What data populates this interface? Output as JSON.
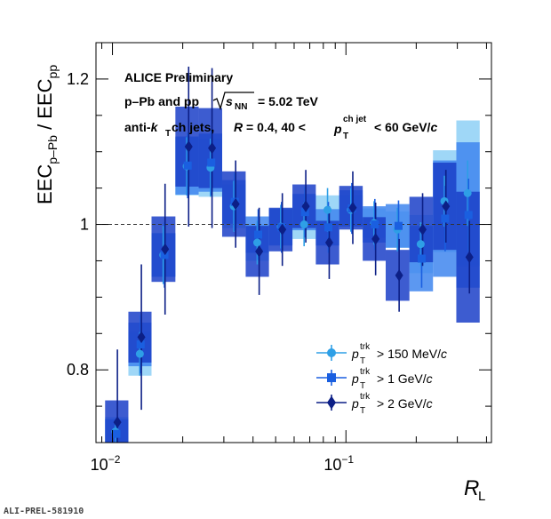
{
  "chart_data": {
    "type": "scatter",
    "annotations": {
      "line1": "ALICE Preliminary",
      "line2_a": "p–Pb and pp",
      "line2_b": "= 5.02 TeV",
      "line3_a": "anti-",
      "line3_b": " ch jets,",
      "line3_c": " = 0.4, 40 < ",
      "line3_d": " < 60 GeV/",
      "sqrt_s": "s",
      "sqrt_sub": "NN",
      "k": "k",
      "k_sub": "T",
      "R": "R",
      "pt": "p",
      "pt_sub": "T",
      "pt_sup": "ch jet",
      "c": "c"
    },
    "xlabel": "R",
    "xlabel_sub": "L",
    "ylabel": "EEC",
    "ylabel_sub1": "p–Pb",
    "ylabel_sep": " / EEC",
    "ylabel_sub2": "pp",
    "xscale": "log",
    "xlim": [
      0.0085,
      0.42
    ],
    "ylim": [
      0.7,
      1.25
    ],
    "x_ticks": [
      {
        "value": 0.01,
        "base": "10",
        "exp": "−2"
      },
      {
        "value": 0.1,
        "base": "10",
        "exp": "−1"
      }
    ],
    "y_ticks": [
      {
        "value": 0.8,
        "label": "0.8"
      },
      {
        "value": 1.0,
        "label": "1"
      },
      {
        "value": 1.2,
        "label": "1.2"
      }
    ],
    "reference_line": 1.0,
    "legend_position": "bottom-right",
    "bin_edges": [
      0.0093,
      0.0117,
      0.0147,
      0.0186,
      0.0234,
      0.0295,
      0.0372,
      0.0468,
      0.059,
      0.0743,
      0.0936,
      0.118,
      0.148,
      0.187,
      0.236,
      0.297,
      0.374,
      0.42
    ],
    "series": [
      {
        "name": "> 150 MeV/",
        "label_pt": "p",
        "label_sub": "T",
        "label_sup": "trk",
        "label_unit": "c",
        "marker": "circle",
        "color": "#2e9fe6",
        "band_color": "#9fd7f7",
        "x": [
          0.0103,
          0.0131,
          0.0165,
          0.0208,
          0.0263,
          0.0331,
          0.0417,
          0.0526,
          0.0662,
          0.0834,
          0.105,
          0.132,
          0.166,
          0.209,
          0.264,
          0.332
        ],
        "y": [
          0.715,
          0.822,
          0.958,
          1.08,
          1.078,
          1.025,
          0.975,
          0.997,
          1.0,
          1.02,
          1.02,
          1.002,
          0.993,
          0.973,
          1.032,
          1.043
        ],
        "stat": [
          0.015,
          0.03,
          0.04,
          0.04,
          0.04,
          0.035,
          0.03,
          0.03,
          0.03,
          0.03,
          0.03,
          0.03,
          0.03,
          0.03,
          0.035,
          0.045
        ],
        "sys": [
          0.02,
          0.03,
          0.03,
          0.04,
          0.04,
          0.03,
          0.025,
          0.025,
          0.02,
          0.02,
          0.02,
          0.02,
          0.025,
          0.04,
          0.07,
          0.1
        ]
      },
      {
        "name": "> 1 GeV/",
        "label_pt": "p",
        "label_sub": "T",
        "label_sup": "trk",
        "label_unit": "c",
        "marker": "square",
        "color": "#1a5fe0",
        "band_color": "#3f86ee",
        "x": [
          0.0104,
          0.0132,
          0.0167,
          0.021,
          0.0265,
          0.0334,
          0.0421,
          0.053,
          0.0668,
          0.0841,
          0.106,
          0.133,
          0.168,
          0.211,
          0.266,
          0.335
        ],
        "y": [
          0.712,
          0.835,
          0.958,
          1.081,
          1.085,
          1.031,
          0.986,
          0.996,
          1.017,
          0.996,
          1.022,
          1.0,
          0.998,
          0.953,
          1.008,
          1.013
        ],
        "stat": [
          0.02,
          0.04,
          0.045,
          0.045,
          0.045,
          0.04,
          0.035,
          0.035,
          0.035,
          0.035,
          0.035,
          0.035,
          0.035,
          0.04,
          0.045,
          0.05
        ],
        "sys": [
          0.02,
          0.03,
          0.03,
          0.04,
          0.04,
          0.03,
          0.025,
          0.025,
          0.025,
          0.025,
          0.025,
          0.025,
          0.03,
          0.045,
          0.08,
          0.1
        ]
      },
      {
        "name": "> 2 GeV/",
        "label_pt": "p",
        "label_sub": "T",
        "label_sup": "trk",
        "label_unit": "c",
        "marker": "diamond",
        "color": "#0c1f86",
        "band_color": "#1b3fc8",
        "x": [
          0.0105,
          0.0133,
          0.0168,
          0.0212,
          0.0267,
          0.0337,
          0.0425,
          0.0534,
          0.0673,
          0.0848,
          0.107,
          0.134,
          0.169,
          0.213,
          0.268,
          0.338
        ],
        "y": [
          0.728,
          0.845,
          0.966,
          1.107,
          1.105,
          1.028,
          0.963,
          0.993,
          1.025,
          0.975,
          1.023,
          0.98,
          0.93,
          0.993,
          1.025,
          0.955
        ],
        "stat": [
          0.1,
          0.1,
          0.09,
          0.11,
          0.11,
          0.06,
          0.06,
          0.05,
          0.05,
          0.05,
          0.05,
          0.05,
          0.05,
          0.05,
          0.05,
          0.05
        ],
        "sys": [
          0.03,
          0.035,
          0.045,
          0.055,
          0.055,
          0.045,
          0.035,
          0.03,
          0.03,
          0.03,
          0.03,
          0.03,
          0.035,
          0.045,
          0.06,
          0.09
        ]
      }
    ]
  },
  "watermark": "ALI-PREL-581910"
}
